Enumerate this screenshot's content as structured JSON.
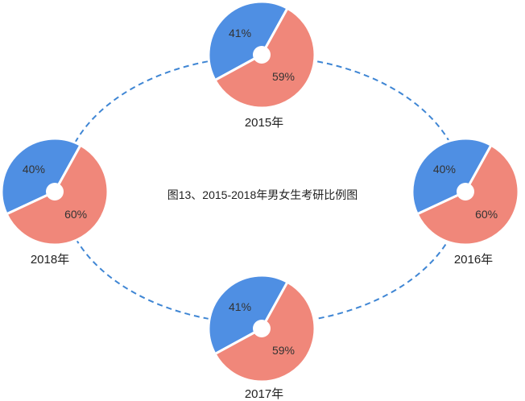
{
  "chart_data": {
    "type": "pie",
    "title": "图13、2015-2018年男女生考研比例图",
    "colors": {
      "blue": "#4f8fe3",
      "red": "#f0877a",
      "ring": "#3f86d4"
    },
    "pies": [
      {
        "id": "2015",
        "year_label": "2015年",
        "slices": [
          {
            "value": 41,
            "label": "41%",
            "color": "#4f8fe3"
          },
          {
            "value": 59,
            "label": "59%",
            "color": "#f0877a"
          }
        ]
      },
      {
        "id": "2016",
        "year_label": "2016年",
        "slices": [
          {
            "value": 40,
            "label": "40%",
            "color": "#4f8fe3"
          },
          {
            "value": 60,
            "label": "60%",
            "color": "#f0877a"
          }
        ]
      },
      {
        "id": "2017",
        "year_label": "2017年",
        "slices": [
          {
            "value": 41,
            "label": "41%",
            "color": "#4f8fe3"
          },
          {
            "value": 59,
            "label": "59%",
            "color": "#f0877a"
          }
        ]
      },
      {
        "id": "2018",
        "year_label": "2018年",
        "slices": [
          {
            "value": 40,
            "label": "40%",
            "color": "#4f8fe3"
          },
          {
            "value": 60,
            "label": "60%",
            "color": "#f0877a"
          }
        ]
      }
    ]
  }
}
